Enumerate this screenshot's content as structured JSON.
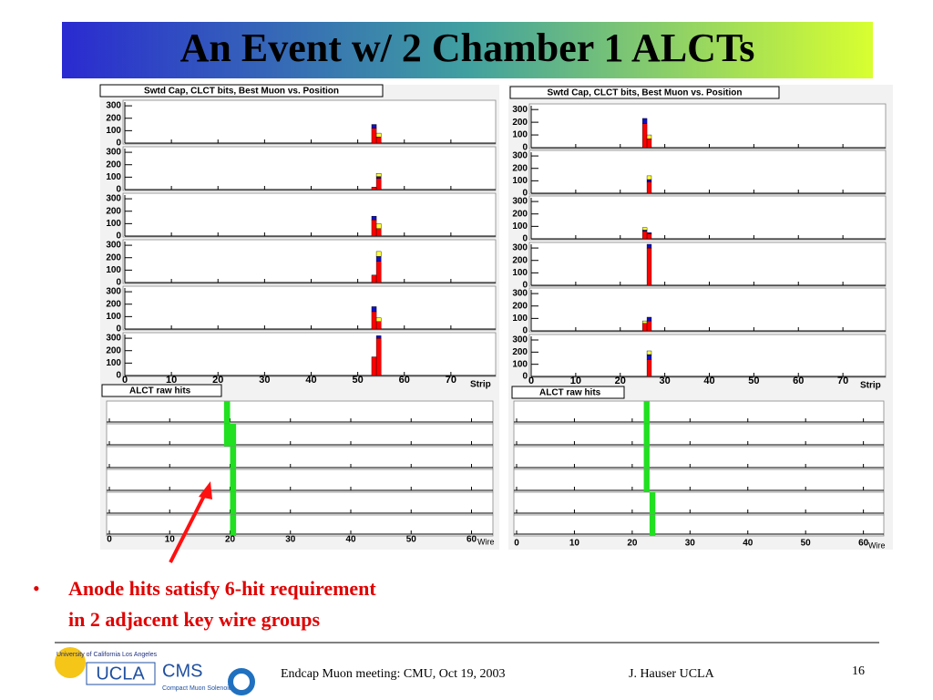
{
  "header": {
    "title": "An Event w/ 2 Chamber 1 ALCTs"
  },
  "panels": [
    {
      "strip_plot": {
        "title": "Swtd Cap, CLCT bits, Best Muon vs. Position",
        "xlabel": "Strip",
        "xlim": [
          0,
          80
        ],
        "ylim": [
          0,
          330
        ],
        "xticks": [
          0,
          10,
          20,
          30,
          40,
          50,
          60,
          70
        ],
        "yticks": [
          0,
          100,
          200,
          300
        ],
        "layers": [
          {
            "strips": [
              53,
              54
            ],
            "red": [
              120,
              50
            ],
            "blue": [
              30,
              0
            ],
            "yellow": [
              0,
              30
            ]
          },
          {
            "strips": [
              53,
              54
            ],
            "red": [
              20,
              90
            ],
            "blue": [
              0,
              15
            ],
            "yellow": [
              0,
              25
            ]
          },
          {
            "strips": [
              53,
              54
            ],
            "red": [
              130,
              60
            ],
            "blue": [
              30,
              0
            ],
            "yellow": [
              0,
              40
            ]
          },
          {
            "strips": [
              53,
              54
            ],
            "red": [
              60,
              170
            ],
            "blue": [
              0,
              40
            ],
            "yellow": [
              0,
              40
            ]
          },
          {
            "strips": [
              53,
              54
            ],
            "red": [
              140,
              60
            ],
            "blue": [
              40,
              0
            ],
            "yellow": [
              0,
              30
            ]
          },
          {
            "strips": [
              53,
              54
            ],
            "red": [
              150,
              300
            ],
            "blue": [
              0,
              20
            ],
            "yellow": [
              0,
              0
            ]
          }
        ]
      },
      "wire_plot": {
        "title": "ALCT raw hits",
        "xlabel": "Wire",
        "xlim": [
          0,
          64
        ],
        "xticks": [
          0,
          10,
          20,
          30,
          40,
          50,
          60
        ],
        "layers": [
          {
            "wires": [
              19
            ]
          },
          {
            "wires": [
              19,
              20
            ]
          },
          {
            "wires": [
              20
            ]
          },
          {
            "wires": [
              20
            ]
          },
          {
            "wires": [
              20
            ]
          },
          {
            "wires": [
              20
            ]
          }
        ]
      }
    },
    {
      "strip_plot": {
        "title": "Swtd Cap, CLCT bits, Best Muon vs. Position",
        "xlabel": "Strip",
        "xlim": [
          0,
          80
        ],
        "ylim": [
          0,
          330
        ],
        "xticks": [
          0,
          10,
          20,
          30,
          40,
          50,
          60,
          70
        ],
        "yticks": [
          0,
          100,
          200,
          300
        ],
        "layers": [
          {
            "strips": [
              25,
              26
            ],
            "red": [
              190,
              70
            ],
            "blue": [
              40,
              0
            ],
            "yellow": [
              0,
              30
            ]
          },
          {
            "strips": [
              26
            ],
            "red": [
              90
            ],
            "blue": [
              20
            ],
            "yellow": [
              30
            ]
          },
          {
            "strips": [
              25,
              26
            ],
            "red": [
              60,
              40
            ],
            "blue": [
              10,
              10
            ],
            "yellow": [
              20,
              0
            ]
          },
          {
            "strips": [
              26
            ],
            "red": [
              300
            ],
            "blue": [
              30
            ],
            "yellow": [
              0
            ]
          },
          {
            "strips": [
              25,
              26
            ],
            "red": [
              60,
              80
            ],
            "blue": [
              0,
              30
            ],
            "yellow": [
              20,
              0
            ]
          },
          {
            "strips": [
              26
            ],
            "red": [
              140
            ],
            "blue": [
              40
            ],
            "yellow": [
              30
            ]
          }
        ]
      },
      "wire_plot": {
        "title": "ALCT raw hits",
        "xlabel": "Wire",
        "xlim": [
          0,
          64
        ],
        "xticks": [
          0,
          10,
          20,
          30,
          40,
          50,
          60
        ],
        "layers": [
          {
            "wires": [
              22
            ]
          },
          {
            "wires": [
              22
            ]
          },
          {
            "wires": [
              22
            ]
          },
          {
            "wires": [
              22
            ]
          },
          {
            "wires": [
              23
            ]
          },
          {
            "wires": [
              23
            ]
          }
        ]
      }
    }
  ],
  "colors": {
    "red": "#ff0000",
    "blue": "#1010c0",
    "yellow": "#ffff40",
    "hit": "#20e020"
  },
  "bullet": {
    "lines": [
      "Anode hits satisfy 6-hit requirement",
      "in 2 adjacent key wire groups"
    ]
  },
  "footer": {
    "logo_caption": "University of California Los Angeles",
    "logo_ucla": "UCLA",
    "logo_cms": "CMS",
    "logo_cms_caption": "Compact Muon Solenoid",
    "meeting": "Endcap Muon meeting: CMU, Oct 19, 2003",
    "author": "J. Hauser UCLA",
    "page": "16"
  }
}
